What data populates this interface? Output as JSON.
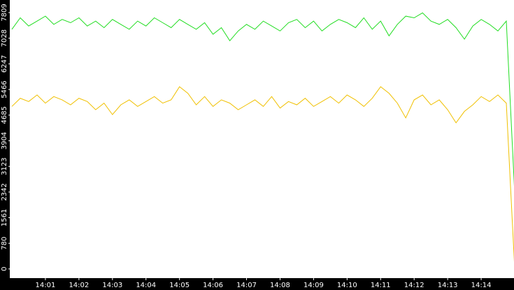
{
  "chart_data": {
    "type": "line",
    "x": [
      "14:00:00",
      "14:00:15",
      "14:00:30",
      "14:00:45",
      "14:01:00",
      "14:01:15",
      "14:01:30",
      "14:01:45",
      "14:02:00",
      "14:02:15",
      "14:02:30",
      "14:02:45",
      "14:03:00",
      "14:03:15",
      "14:03:30",
      "14:03:45",
      "14:04:00",
      "14:04:15",
      "14:04:30",
      "14:04:45",
      "14:05:00",
      "14:05:15",
      "14:05:30",
      "14:05:45",
      "14:06:00",
      "14:06:15",
      "14:06:30",
      "14:06:45",
      "14:07:00",
      "14:07:15",
      "14:07:30",
      "14:07:45",
      "14:08:00",
      "14:08:15",
      "14:08:30",
      "14:08:45",
      "14:09:00",
      "14:09:15",
      "14:09:30",
      "14:09:45",
      "14:10:00",
      "14:10:15",
      "14:10:30",
      "14:10:45",
      "14:11:00",
      "14:11:15",
      "14:11:30",
      "14:11:45",
      "14:12:00",
      "14:12:15",
      "14:12:30",
      "14:12:45",
      "14:13:00",
      "14:13:15",
      "14:13:30",
      "14:13:45",
      "14:14:00",
      "14:14:15",
      "14:14:30",
      "14:14:45",
      "14:15:00"
    ],
    "series": [
      {
        "name": "green",
        "color": "#22dd22",
        "values": [
          7300,
          7650,
          7400,
          7550,
          7700,
          7450,
          7600,
          7500,
          7650,
          7400,
          7550,
          7350,
          7600,
          7450,
          7300,
          7550,
          7400,
          7650,
          7500,
          7350,
          7600,
          7450,
          7300,
          7500,
          7150,
          7350,
          6950,
          7250,
          7450,
          7300,
          7550,
          7400,
          7250,
          7500,
          7600,
          7350,
          7550,
          7250,
          7450,
          7600,
          7500,
          7350,
          7650,
          7300,
          7550,
          7100,
          7450,
          7700,
          7650,
          7800,
          7550,
          7450,
          7600,
          7350,
          7000,
          7400,
          7600,
          7450,
          7250,
          7550,
          2300
        ]
      },
      {
        "name": "yellow",
        "color": "#f0c000",
        "values": [
          4950,
          5200,
          5100,
          5300,
          5050,
          5250,
          5150,
          5000,
          5200,
          5100,
          4850,
          5050,
          4700,
          5000,
          5150,
          4950,
          5100,
          5250,
          5050,
          5150,
          5550,
          5350,
          5000,
          5250,
          4950,
          5150,
          5050,
          4850,
          5000,
          5150,
          4950,
          5250,
          4900,
          5100,
          5000,
          5200,
          4950,
          5100,
          5250,
          5050,
          5300,
          5150,
          4950,
          5200,
          5550,
          5350,
          5050,
          4600,
          5150,
          5300,
          5000,
          5150,
          4850,
          4450,
          4800,
          5000,
          5250,
          5100,
          5300,
          5050,
          0
        ]
      }
    ],
    "xlim": [
      "14:00",
      "14:15"
    ],
    "xticks": [
      "14:01",
      "14:02",
      "14:03",
      "14:04",
      "14:05",
      "14:06",
      "14:07",
      "14:08",
      "14:09",
      "14:10",
      "14:11",
      "14:12",
      "14:13",
      "14:14"
    ],
    "ylim": [
      -280,
      8192
    ],
    "yticks": [
      0,
      780,
      1561,
      2342,
      3123,
      3904,
      4685,
      5466,
      6247,
      7028,
      7809
    ]
  }
}
